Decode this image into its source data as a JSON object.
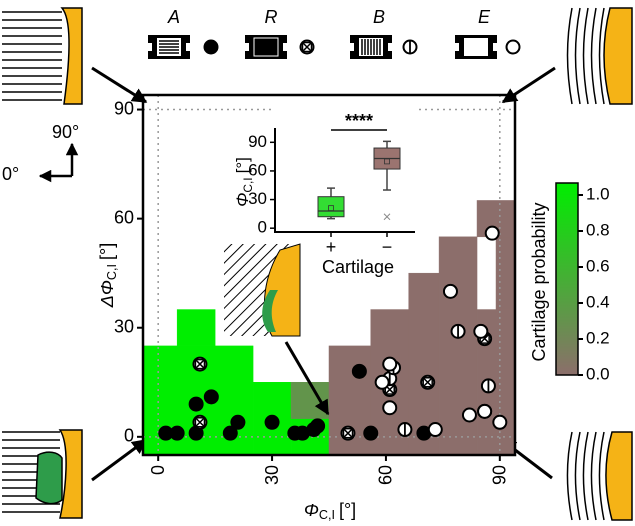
{
  "chart_data": [
    {
      "type": "scatter",
      "x_label": {
        "symbol": "Φ",
        "sub": "C,I",
        "unit": "[°]"
      },
      "y_label": {
        "symbol": "ΔΦ",
        "sub": "C,I",
        "unit": "[°]"
      },
      "xlim": [
        -4,
        94
      ],
      "ylim": [
        -5,
        94
      ],
      "xticks": [
        0,
        30,
        60,
        90
      ],
      "yticks": [
        0,
        30,
        60,
        90
      ],
      "orientation_labels": {
        "vertical": "90°",
        "horizontal": "0°"
      },
      "heatmap": {
        "colorbar_label": "Cartilage probability",
        "colormap": [
          "#8c6e6b",
          "#00ee00"
        ],
        "colorbar_lim": [
          0,
          1
        ],
        "colorbar_ticks": [
          {
            "value": 0,
            "label": "0.0"
          },
          0.2,
          0.4,
          0.6,
          0.8,
          {
            "value": 1,
            "label": "1.0"
          }
        ],
        "cells": [
          {
            "x": [
              -4,
              25
            ],
            "y": [
              -5,
              25
            ],
            "value": 1
          },
          {
            "x": [
              25,
              35
            ],
            "y": [
              -5,
              15
            ],
            "value": 1
          },
          {
            "x": [
              5,
              15
            ],
            "y": [
              25,
              35
            ],
            "value": 1
          },
          {
            "x": [
              35,
              45
            ],
            "y": [
              -5,
              5
            ],
            "value": 1
          },
          {
            "x": [
              35,
              45
            ],
            "y": [
              5,
              15
            ],
            "value": 0.3
          },
          {
            "x": [
              45,
              56
            ],
            "y": [
              -5,
              25
            ],
            "value": 0
          },
          {
            "x": [
              56,
              66
            ],
            "y": [
              -5,
              35
            ],
            "value": 0
          },
          {
            "x": [
              66,
              74
            ],
            "y": [
              -5,
              45
            ],
            "value": 0
          },
          {
            "x": [
              74,
              84
            ],
            "y": [
              -5,
              55
            ],
            "value": 0
          },
          {
            "x": [
              84,
              94
            ],
            "y": [
              -5,
              35
            ],
            "value": 0
          },
          {
            "x": [
              89,
              94
            ],
            "y": [
              35,
              55
            ],
            "value": 0
          },
          {
            "x": [
              84,
              94
            ],
            "y": [
              55,
              65
            ],
            "value": 0
          }
        ]
      },
      "series": [
        {
          "name": "A",
          "label_color": "#7ac943",
          "color": "#000000",
          "marker": "filled",
          "x": [
            2,
            5,
            10,
            14,
            10,
            19,
            21,
            30,
            36,
            38,
            41,
            42,
            53,
            56,
            70
          ],
          "y": [
            1,
            1,
            9,
            11,
            1,
            1,
            4,
            4,
            1,
            1,
            2,
            3,
            18,
            1,
            1
          ]
        },
        {
          "name": "R",
          "label_color": "#f5a623",
          "color": "#000000",
          "marker": "crossed",
          "x": [
            11,
            11,
            50,
            61,
            71,
            86
          ],
          "y": [
            20,
            4,
            1,
            13,
            15,
            27
          ]
        },
        {
          "name": "B",
          "label_color": "#e8417f",
          "color": "#000000",
          "marker": "barred",
          "x": [
            61,
            62,
            65,
            79,
            87,
            86
          ],
          "y": [
            16,
            19,
            2,
            29,
            14,
            7
          ]
        },
        {
          "name": "E",
          "label_color": "#f5a623",
          "color": "#000000",
          "marker": "open",
          "x": [
            88,
            77,
            85,
            61,
            61,
            73,
            82,
            90,
            86,
            59
          ],
          "y": [
            56,
            40,
            29,
            20,
            8,
            2,
            6,
            4,
            7,
            15
          ]
        }
      ]
    },
    {
      "type": "box",
      "y_label": {
        "symbol": "Φ",
        "sub": "C,I",
        "unit": "[°]"
      },
      "x_label": "Cartilage",
      "categories": [
        "+",
        "−"
      ],
      "colors": [
        "#33dd33",
        "#9b7470"
      ],
      "ylim": [
        -4,
        105
      ],
      "yticks": [
        0,
        30,
        60,
        90
      ],
      "significance": "****",
      "boxes": [
        {
          "whisker_low": 10,
          "q1": 12,
          "median": 18,
          "q3": 33,
          "whisker_high": 42,
          "mean": 21,
          "outliers": []
        },
        {
          "whisker_low": 40,
          "q1": 62,
          "median": 73,
          "q3": 84,
          "whisker_high": 91,
          "mean": 70,
          "outliers": [
            12
          ]
        }
      ]
    }
  ]
}
